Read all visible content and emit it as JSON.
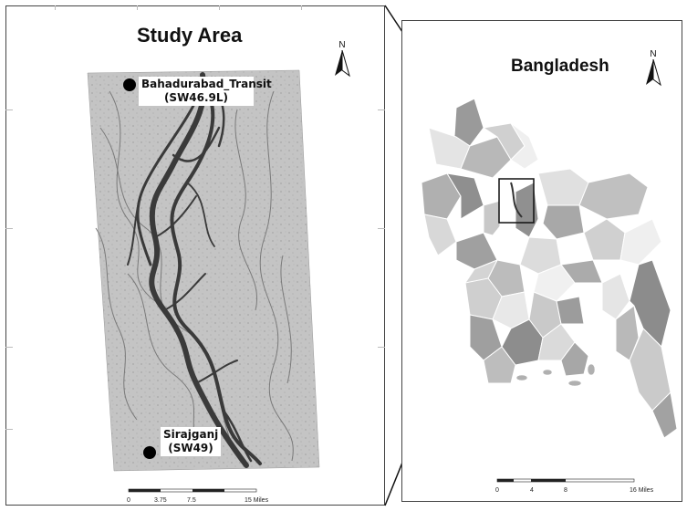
{
  "left_map": {
    "title": "Study Area",
    "north_label": "N",
    "stations": [
      {
        "name": "Bahadurabad_Transit",
        "code": "(SW46.9L)"
      },
      {
        "name": "Sirajganj",
        "code": "(SW49)"
      }
    ],
    "scale": {
      "ticks": [
        "0",
        "3.75",
        "7.5",
        "15 Miles"
      ]
    }
  },
  "right_map": {
    "title": "Bangladesh",
    "north_label": "N",
    "scale": {
      "ticks": [
        "0",
        "4",
        "8",
        "16 Miles"
      ]
    }
  }
}
